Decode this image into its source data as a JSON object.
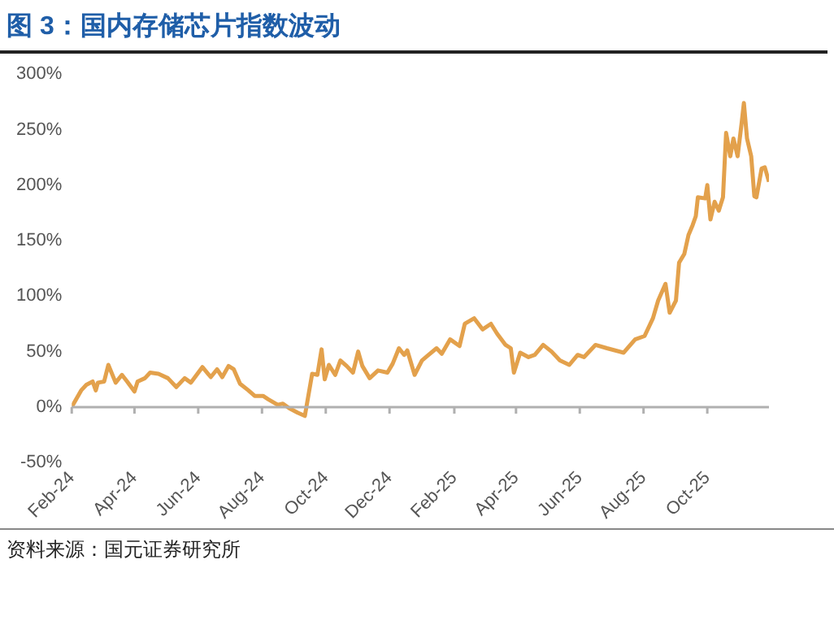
{
  "chart_data": {
    "type": "line",
    "title": "图 3：国内存储芯片指数波动",
    "x": [
      "2024-02-01",
      "2024-02-04",
      "2024-02-10",
      "2024-02-15",
      "2024-02-21",
      "2024-02-24",
      "2024-02-26",
      "2024-03-03",
      "2024-03-07",
      "2024-03-14",
      "2024-03-20",
      "2024-03-25",
      "2024-04-01",
      "2024-04-04",
      "2024-04-11",
      "2024-04-16",
      "2024-04-24",
      "2024-05-03",
      "2024-05-11",
      "2024-05-19",
      "2024-05-25",
      "2024-06-05",
      "2024-06-13",
      "2024-06-19",
      "2024-06-24",
      "2024-06-30",
      "2024-07-05",
      "2024-07-11",
      "2024-07-19",
      "2024-07-25",
      "2024-08-02",
      "2024-08-07",
      "2024-08-16",
      "2024-08-21",
      "2024-08-27",
      "2024-09-04",
      "2024-09-11",
      "2024-09-18",
      "2024-09-23",
      "2024-09-27",
      "2024-09-30",
      "2024-10-04",
      "2024-10-10",
      "2024-10-15",
      "2024-10-21",
      "2024-10-27",
      "2024-11-01",
      "2024-11-05",
      "2024-11-12",
      "2024-11-20",
      "2024-11-29",
      "2024-12-04",
      "2024-12-10",
      "2024-12-15",
      "2024-12-18",
      "2024-12-25",
      "2025-01-01",
      "2025-01-06",
      "2025-01-15",
      "2025-01-20",
      "2025-01-28",
      "2025-02-06",
      "2025-02-11",
      "2025-02-20",
      "2025-02-28",
      "2025-03-08",
      "2025-03-14",
      "2025-03-22",
      "2025-03-27",
      "2025-03-30",
      "2025-04-05",
      "2025-04-13",
      "2025-04-19",
      "2025-04-27",
      "2025-05-05",
      "2025-05-13",
      "2025-05-22",
      "2025-05-30",
      "2025-06-05",
      "2025-06-16",
      "2025-06-27",
      "2025-07-13",
      "2025-07-24",
      "2025-08-02",
      "2025-08-10",
      "2025-08-15",
      "2025-08-22",
      "2025-08-26",
      "2025-09-01",
      "2025-09-04",
      "2025-09-09",
      "2025-09-13",
      "2025-09-17",
      "2025-09-20",
      "2025-09-22",
      "2025-09-29",
      "2025-10-01",
      "2025-10-04",
      "2025-10-08",
      "2025-10-12",
      "2025-10-16",
      "2025-10-19",
      "2025-10-23",
      "2025-10-26",
      "2025-10-30",
      "2025-11-03",
      "2025-11-05",
      "2025-11-08",
      "2025-11-12",
      "2025-11-15",
      "2025-11-17",
      "2025-11-22",
      "2025-11-25",
      "2025-11-29"
    ],
    "series": [
      {
        "color": "#e3a14c",
        "values": [
          0,
          5,
          15,
          20,
          23,
          15,
          22,
          23,
          38,
          22,
          29,
          23,
          14,
          23,
          26,
          31,
          30,
          26,
          18,
          26,
          22,
          36,
          27,
          34,
          27,
          37,
          34,
          21,
          15,
          10,
          10,
          7,
          2,
          3,
          -1,
          -5,
          -8,
          30,
          29,
          52,
          25,
          38,
          29,
          42,
          37,
          31,
          50,
          37,
          26,
          33,
          31,
          39,
          53,
          47,
          51,
          29,
          42,
          46,
          53,
          48,
          61,
          55,
          75,
          80,
          70,
          75,
          66,
          56,
          53,
          31,
          49,
          45,
          47,
          56,
          50,
          42,
          38,
          47,
          45,
          56,
          53,
          49,
          61,
          64,
          80,
          96,
          111,
          85,
          96,
          130,
          138,
          155,
          164,
          172,
          189,
          188,
          200,
          169,
          185,
          177,
          189,
          247,
          226,
          242,
          226,
          257,
          274,
          242,
          226,
          190,
          189,
          215,
          216,
          203
        ]
      }
    ],
    "xlim": [
      "2024-02-01",
      "2025-11-29"
    ],
    "xticks": [
      {
        "value": "2024-02-01",
        "label": "Feb-24"
      },
      {
        "value": "2024-04-01",
        "label": "Apr-24"
      },
      {
        "value": "2024-06-01",
        "label": "Jun-24"
      },
      {
        "value": "2024-08-01",
        "label": "Aug-24"
      },
      {
        "value": "2024-10-01",
        "label": "Oct-24"
      },
      {
        "value": "2024-12-01",
        "label": "Dec-24"
      },
      {
        "value": "2025-02-01",
        "label": "Feb-25"
      },
      {
        "value": "2025-04-01",
        "label": "Apr-25"
      },
      {
        "value": "2025-06-01",
        "label": "Jun-25"
      },
      {
        "value": "2025-08-01",
        "label": "Aug-25"
      },
      {
        "value": "2025-10-01",
        "label": "Oct-25"
      }
    ],
    "ylim": [
      -50,
      300
    ],
    "yticks": [
      {
        "value": -50,
        "label": "-50%"
      },
      {
        "value": 0,
        "label": "0%"
      },
      {
        "value": 50,
        "label": "50%"
      },
      {
        "value": 100,
        "label": "100%"
      },
      {
        "value": 150,
        "label": "150%"
      },
      {
        "value": 200,
        "label": "200%"
      },
      {
        "value": 250,
        "label": "250%"
      },
      {
        "value": 300,
        "label": "300%"
      }
    ],
    "ref_lines": [
      {
        "axis": "y",
        "value": 0,
        "color": "#b0b0b0",
        "line_style": "solid"
      }
    ],
    "grid": false,
    "legend": false,
    "marker": "none",
    "line_style": "solid",
    "annotations": [
      "资料来源：国元证券研究所"
    ]
  }
}
